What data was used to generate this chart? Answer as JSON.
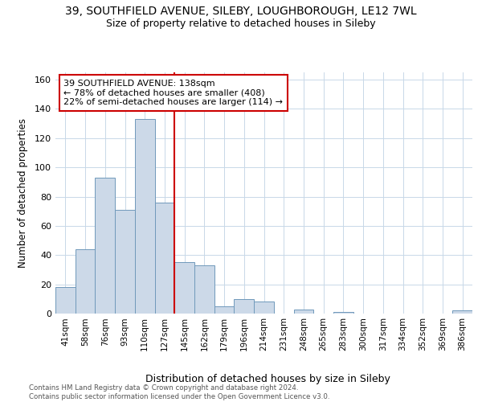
{
  "title_line1": "39, SOUTHFIELD AVENUE, SILEBY, LOUGHBOROUGH, LE12 7WL",
  "title_line2": "Size of property relative to detached houses in Sileby",
  "xlabel": "Distribution of detached houses by size in Sileby",
  "ylabel": "Number of detached properties",
  "footnote": "Contains HM Land Registry data © Crown copyright and database right 2024.\nContains public sector information licensed under the Open Government Licence v3.0.",
  "bin_labels": [
    "41sqm",
    "58sqm",
    "76sqm",
    "93sqm",
    "110sqm",
    "127sqm",
    "145sqm",
    "162sqm",
    "179sqm",
    "196sqm",
    "214sqm",
    "231sqm",
    "248sqm",
    "265sqm",
    "283sqm",
    "300sqm",
    "317sqm",
    "334sqm",
    "352sqm",
    "369sqm",
    "386sqm"
  ],
  "bar_values": [
    18,
    44,
    93,
    71,
    133,
    76,
    35,
    33,
    5,
    10,
    8,
    0,
    3,
    0,
    1,
    0,
    0,
    0,
    0,
    0,
    2
  ],
  "bar_color": "#ccd9e8",
  "bar_edge_color": "#7099bb",
  "vline_x_index": 5.5,
  "annotation_line1": "39 SOUTHFIELD AVENUE: 138sqm",
  "annotation_line2": "← 78% of detached houses are smaller (408)",
  "annotation_line3": "22% of semi-detached houses are larger (114) →",
  "annotation_box_facecolor": "#ffffff",
  "annotation_box_edgecolor": "#cc0000",
  "vline_color": "#cc0000",
  "ylim": [
    0,
    165
  ],
  "yticks": [
    0,
    20,
    40,
    60,
    80,
    100,
    120,
    140,
    160
  ],
  "background_color": "#ffffff",
  "grid_color": "#c8d8e8"
}
